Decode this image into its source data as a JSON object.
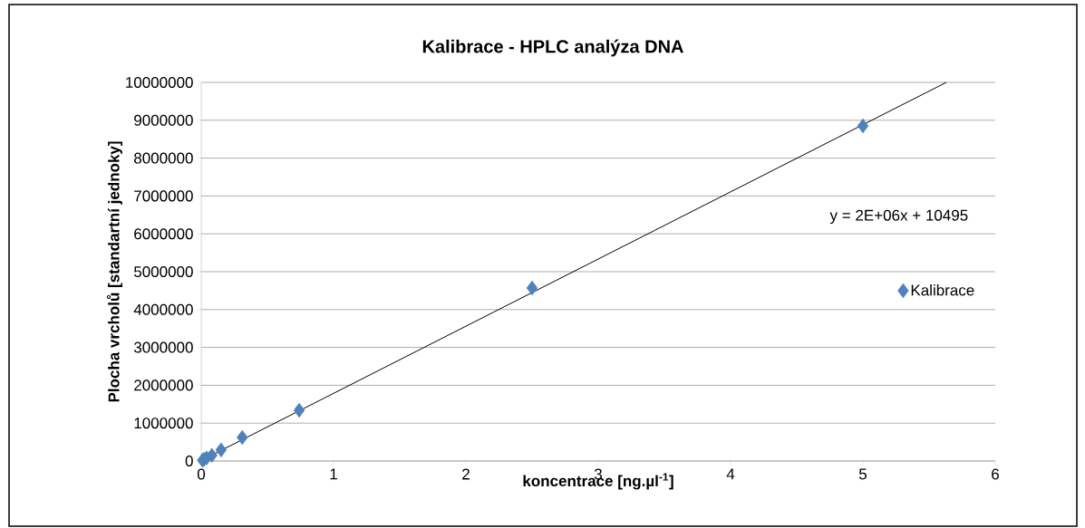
{
  "chart_data": {
    "type": "scatter",
    "title": "Kalibrace - HPLC analýza DNA",
    "xlabel": "koncentrace [ng.µl$^{-1}$]",
    "ylabel": "Plocha vrcholů [standartní jednoky]",
    "annotations": [
      "y = 2E+06x + 10495"
    ],
    "series": [
      {
        "name": "Kalibrace",
        "color": "#4f81bd",
        "marker": "diamond",
        "x": [
          0.01,
          0.02,
          0.04,
          0.08,
          0.15,
          0.31,
          0.74,
          2.5,
          5
        ],
        "values": [
          20000,
          40000,
          80000,
          150000,
          290000,
          620000,
          1340000,
          4570000,
          8850000
        ]
      },
      {
        "type": "line",
        "color": "#000000",
        "marker": "none",
        "x": [
          0.01,
          5.63
        ],
        "values": [
          30000,
          10000000
        ]
      }
    ],
    "xlim": [
      0,
      6
    ],
    "xticks": [
      0,
      1,
      2,
      3,
      4,
      5,
      6
    ],
    "ylim": [
      0,
      10000000
    ],
    "yticks": [
      0,
      1000000,
      2000000,
      3000000,
      4000000,
      5000000,
      6000000,
      7000000,
      8000000,
      9000000,
      10000000
    ],
    "grid": "y",
    "legend": "right"
  }
}
